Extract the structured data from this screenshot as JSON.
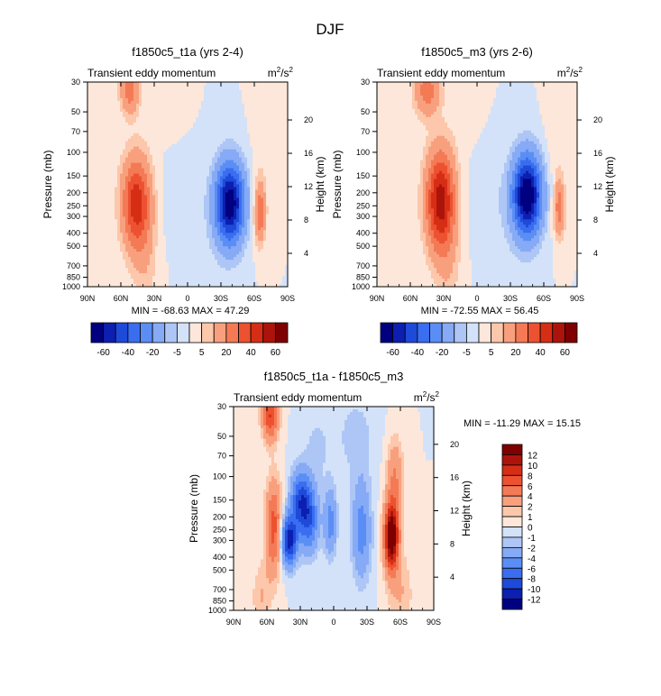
{
  "page_title": "DJF",
  "chart_data": [
    {
      "type": "heatmap",
      "title": "f1850c5_t1a (yrs 2-4)",
      "subtitle_left": "Transient eddy momentum",
      "units": "m²/s²",
      "units_base": "m",
      "units_exp1": "2",
      "units_sep": "/s",
      "units_exp2": "2",
      "xlabel": "",
      "ylabel": "Pressure (mb)",
      "ylabel_right": "Height (km)",
      "x_ticks": [
        "90N",
        "60N",
        "30N",
        "0",
        "30S",
        "60S",
        "90S"
      ],
      "y_ticks": [
        "30",
        "50",
        "70",
        "100",
        "150",
        "200",
        "250",
        "300",
        "400",
        "500",
        "700",
        "850",
        "1000"
      ],
      "y_right_ticks": [
        "20",
        "16",
        "12",
        "8",
        "4"
      ],
      "stats": "MIN = -68.63  MAX =  47.29",
      "features": [
        {
          "lat": 46,
          "p": 240,
          "v": 47,
          "wlat": 9,
          "wp": 0.55
        },
        {
          "lat": 52,
          "p": 35,
          "v": 25,
          "wlat": 6,
          "wp": 0.28
        },
        {
          "lat": 38,
          "p": 700,
          "v": 7,
          "wlat": 8,
          "wp": 0.6
        },
        {
          "lat": -38,
          "p": 240,
          "v": -68,
          "wlat": 9,
          "wp": 0.48
        },
        {
          "lat": -65,
          "p": 280,
          "v": 30,
          "wlat": 3.5,
          "wp": 0.35
        },
        {
          "lat": -67,
          "p": 60,
          "v": 4,
          "wlat": 6,
          "wp": 0.8
        },
        {
          "lat": 8,
          "p": 200,
          "v": -3,
          "wlat": 14,
          "wp": 0.6
        },
        {
          "lat": -20,
          "p": 500,
          "v": -2,
          "wlat": 15,
          "wp": 0.9
        },
        {
          "lat": 82,
          "p": 350,
          "v": 2,
          "wlat": 6,
          "wp": 0.8
        },
        {
          "lat": 15,
          "p": 60,
          "v": 1.5,
          "wlat": 12,
          "wp": 0.5
        }
      ]
    },
    {
      "type": "heatmap",
      "title": "f1850c5_m3 (yrs 2-6)",
      "subtitle_left": "Transient eddy momentum",
      "units": "m²/s²",
      "units_base": "m",
      "units_exp1": "2",
      "units_sep": "/s",
      "units_exp2": "2",
      "xlabel": "",
      "ylabel": "Pressure (mb)",
      "ylabel_right": "Height (km)",
      "x_ticks": [
        "90N",
        "60N",
        "30N",
        "0",
        "30S",
        "60S",
        "90S"
      ],
      "y_ticks": [
        "30",
        "50",
        "70",
        "100",
        "150",
        "200",
        "250",
        "300",
        "400",
        "500",
        "700",
        "850",
        "1000"
      ],
      "y_right_ticks": [
        "20",
        "16",
        "12",
        "8",
        "4"
      ],
      "stats": "MIN = -72.55  MAX =  56.45",
      "features": [
        {
          "lat": 33,
          "p": 230,
          "v": 56,
          "wlat": 9,
          "wp": 0.6
        },
        {
          "lat": 45,
          "p": 35,
          "v": 25,
          "wlat": 8,
          "wp": 0.3
        },
        {
          "lat": 26,
          "p": 700,
          "v": 7,
          "wlat": 8,
          "wp": 0.6
        },
        {
          "lat": -45,
          "p": 210,
          "v": -72,
          "wlat": 9,
          "wp": 0.48
        },
        {
          "lat": -74,
          "p": 260,
          "v": 25,
          "wlat": 3.5,
          "wp": 0.35
        },
        {
          "lat": -70,
          "p": 60,
          "v": 4,
          "wlat": 6,
          "wp": 0.8
        },
        {
          "lat": -10,
          "p": 200,
          "v": -3,
          "wlat": 14,
          "wp": 0.6
        },
        {
          "lat": -25,
          "p": 500,
          "v": -2,
          "wlat": 15,
          "wp": 0.9
        },
        {
          "lat": 75,
          "p": 350,
          "v": 2,
          "wlat": 6,
          "wp": 0.8
        },
        {
          "lat": 10,
          "p": 60,
          "v": 1.5,
          "wlat": 12,
          "wp": 0.5
        }
      ]
    },
    {
      "type": "heatmap",
      "title": "f1850c5_t1a - f1850c5_m3",
      "subtitle_left": "Transient eddy momentum",
      "units": "m²/s²",
      "units_base": "m",
      "units_exp1": "2",
      "units_sep": "/s",
      "units_exp2": "2",
      "xlabel": "",
      "ylabel": "Pressure (mb)",
      "ylabel_right": "Height (km)",
      "x_ticks": [
        "90N",
        "60N",
        "30N",
        "0",
        "30S",
        "60S",
        "90S"
      ],
      "y_ticks": [
        "30",
        "50",
        "70",
        "100",
        "150",
        "200",
        "250",
        "300",
        "400",
        "500",
        "700",
        "850",
        "1000"
      ],
      "y_right_ticks": [
        "20",
        "16",
        "12",
        "8",
        "4"
      ],
      "stats": "MIN = -11.29  MAX =  15.15",
      "features": [
        {
          "lat": 54,
          "p": 240,
          "v": 7,
          "wlat": 5,
          "wp": 0.55
        },
        {
          "lat": 57,
          "p": 35,
          "v": 8,
          "wlat": 5,
          "wp": 0.3
        },
        {
          "lat": 40,
          "p": 300,
          "v": -11.3,
          "wlat": 5,
          "wp": 0.3
        },
        {
          "lat": 30,
          "p": 150,
          "v": -8,
          "wlat": 6,
          "wp": 0.35
        },
        {
          "lat": 22,
          "p": 210,
          "v": -7,
          "wlat": 6,
          "wp": 0.4
        },
        {
          "lat": 3,
          "p": 220,
          "v": -5,
          "wlat": 4,
          "wp": 0.4
        },
        {
          "lat": -25,
          "p": 250,
          "v": -5,
          "wlat": 6,
          "wp": 0.6
        },
        {
          "lat": -52,
          "p": 280,
          "v": 15.15,
          "wlat": 4.5,
          "wp": 0.4
        },
        {
          "lat": -55,
          "p": 100,
          "v": 4,
          "wlat": 5,
          "wp": 0.45
        },
        {
          "lat": -60,
          "p": 750,
          "v": 2,
          "wlat": 8,
          "wp": 0.5
        },
        {
          "lat": 65,
          "p": 800,
          "v": 2,
          "wlat": 6,
          "wp": 0.4
        },
        {
          "lat": -20,
          "p": 50,
          "v": -1.5,
          "wlat": 12,
          "wp": 0.5
        },
        {
          "lat": 15,
          "p": 60,
          "v": -1.2,
          "wlat": 10,
          "wp": 0.5
        }
      ]
    }
  ],
  "colorbars": {
    "main": {
      "colors": [
        "#000080",
        "#0c1fb0",
        "#1e4ad9",
        "#3a6df0",
        "#5b8ef5",
        "#86aaf5",
        "#adc6f6",
        "#d3e2f8",
        "#fde7da",
        "#fcc7ab",
        "#f8a07e",
        "#f47a56",
        "#ec5231",
        "#d62e15",
        "#ac140b",
        "#7f0000"
      ],
      "labels": [
        "-60",
        "-40",
        "-20",
        "-5",
        "5",
        "20",
        "40",
        "60"
      ]
    },
    "diff": {
      "colors": [
        "#7f0000",
        "#ac140b",
        "#d62e15",
        "#ec5231",
        "#f47a56",
        "#f8a07e",
        "#fcc7ab",
        "#fde7da",
        "#d3e2f8",
        "#adc6f6",
        "#86aaf5",
        "#5b8ef5",
        "#3a6df0",
        "#1e4ad9",
        "#0c1fb0",
        "#000080"
      ],
      "labels": [
        "12",
        "10",
        "8",
        "6",
        "4",
        "2",
        "1",
        "0",
        "-1",
        "-2",
        "-4",
        "-6",
        "-8",
        "-10",
        "-12"
      ]
    }
  }
}
